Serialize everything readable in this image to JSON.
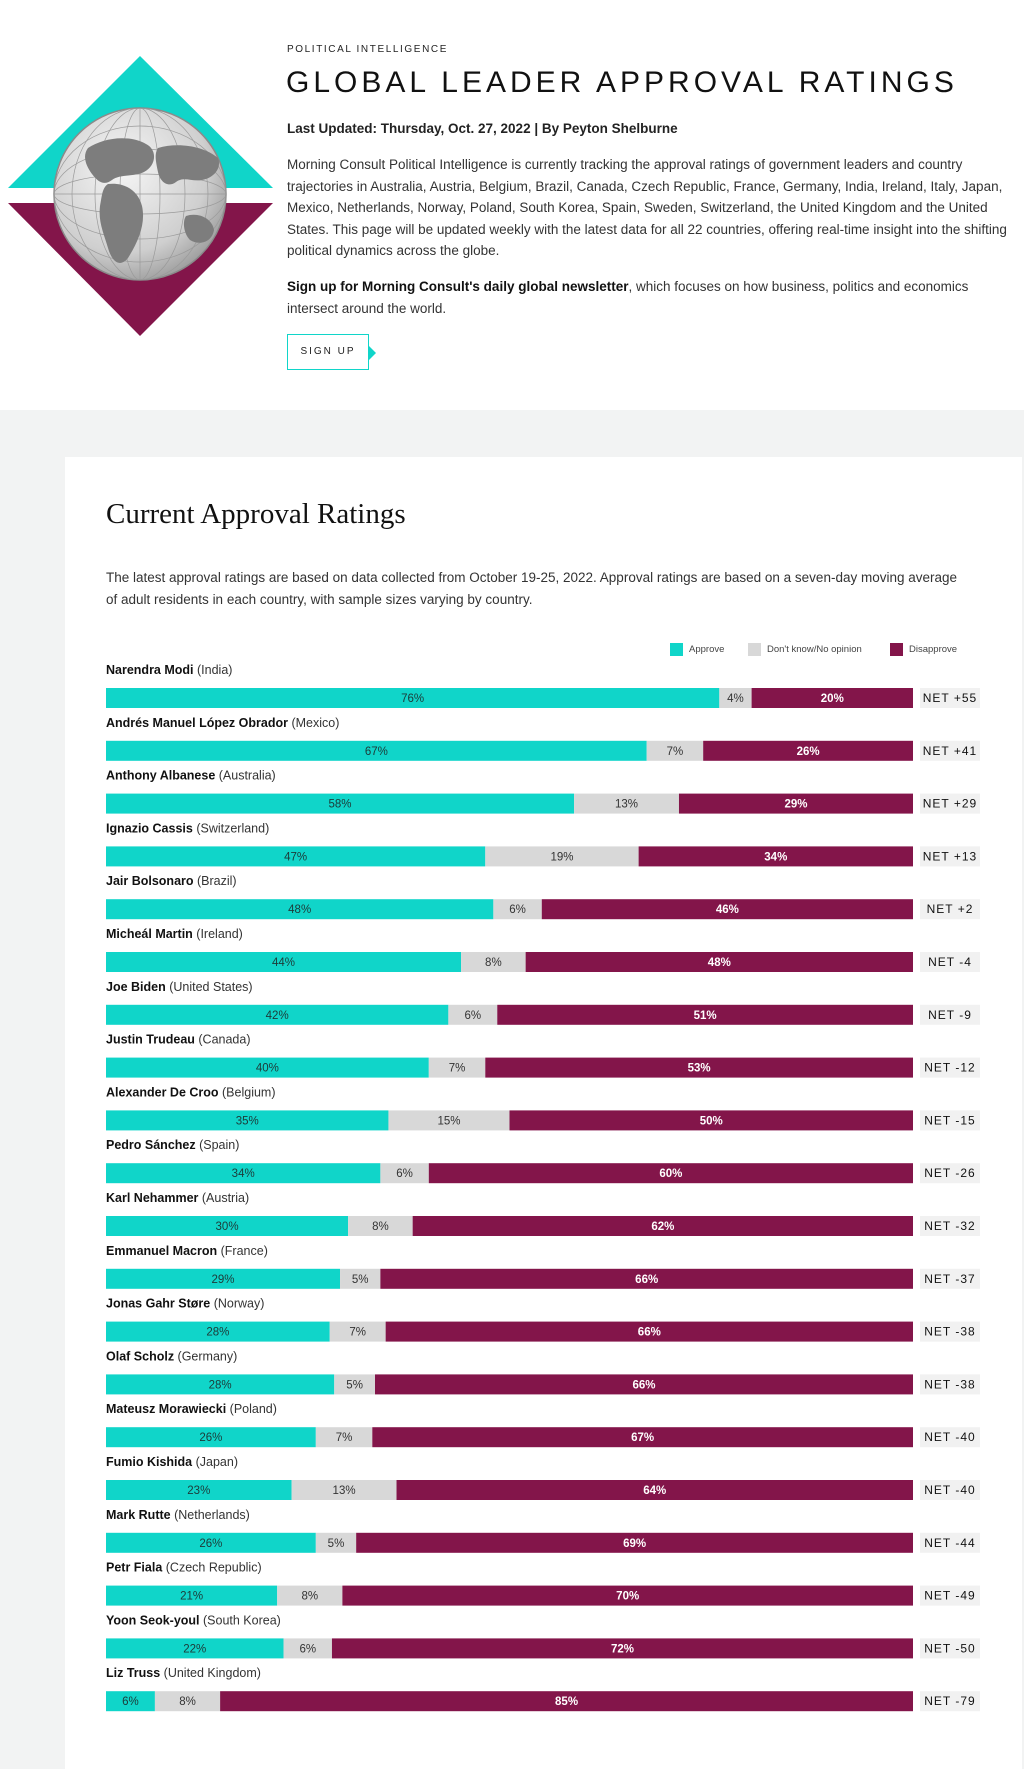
{
  "header": {
    "eyebrow": "POLITICAL INTELLIGENCE",
    "title": "GLOBAL LEADER APPROVAL RATINGS",
    "updated_label": "Last Updated: Thursday, Oct. 27, 2022",
    "byline": " | By Peyton Shelburne",
    "intro": "Morning Consult Political Intelligence is currently tracking the approval ratings of government leaders and country trajectories in Australia, Austria, Belgium, Brazil, Canada, Czech Republic, France, Germany, India, Ireland, Italy, Japan, Mexico, Netherlands, Norway, Poland, South Korea, Spain, Sweden, Switzerland, the United Kingdom and the United States. This page will be updated weekly with the latest data for all 22 countries, offering real-time insight into the shifting political dynamics across the globe.",
    "signup_link": "Sign up for Morning Consult's daily global newsletter",
    "signup_rest": ", which focuses on how business, politics and economics intersect around the world.",
    "signup_button": "SIGN UP"
  },
  "section": {
    "title": "Current Approval Ratings",
    "description": "The latest approval ratings are based on data collected from October 19-25, 2022. Approval ratings are based on a seven-day moving average of adult residents in each country, with sample sizes varying by country."
  },
  "colors": {
    "approve": "#10d5c9",
    "neutral": "#d8d8d8",
    "disapprove": "#83154a",
    "net_bg": "#f1f1f1"
  },
  "chart_data": {
    "type": "bar",
    "orientation": "horizontal",
    "stacked": true,
    "legend": [
      {
        "key": "approve",
        "label": "Approve"
      },
      {
        "key": "neutral",
        "label": "Don't know/No opinion"
      },
      {
        "key": "disapprove",
        "label": "Disapprove"
      }
    ],
    "legend_position": "top-right",
    "rows": [
      {
        "name": "Narendra Modi",
        "country": "(India)",
        "approve": 76,
        "neutral": 4,
        "disapprove": 20,
        "net": "NET +55"
      },
      {
        "name": "Andrés Manuel López Obrador",
        "country": "(Mexico)",
        "approve": 67,
        "neutral": 7,
        "disapprove": 26,
        "net": "NET +41"
      },
      {
        "name": "Anthony Albanese",
        "country": "(Australia)",
        "approve": 58,
        "neutral": 13,
        "disapprove": 29,
        "net": "NET +29"
      },
      {
        "name": "Ignazio Cassis",
        "country": "(Switzerland)",
        "approve": 47,
        "neutral": 19,
        "disapprove": 34,
        "net": "NET +13"
      },
      {
        "name": "Jair Bolsonaro",
        "country": "(Brazil)",
        "approve": 48,
        "neutral": 6,
        "disapprove": 46,
        "net": "NET +2"
      },
      {
        "name": "Micheál Martin",
        "country": "(Ireland)",
        "approve": 44,
        "neutral": 8,
        "disapprove": 48,
        "net": "NET -4"
      },
      {
        "name": "Joe Biden",
        "country": "(United States)",
        "approve": 42,
        "neutral": 6,
        "disapprove": 51,
        "net": "NET -9"
      },
      {
        "name": "Justin Trudeau",
        "country": "(Canada)",
        "approve": 40,
        "neutral": 7,
        "disapprove": 53,
        "net": "NET -12"
      },
      {
        "name": "Alexander De Croo",
        "country": "(Belgium)",
        "approve": 35,
        "neutral": 15,
        "disapprove": 50,
        "net": "NET -15"
      },
      {
        "name": "Pedro Sánchez",
        "country": "(Spain)",
        "approve": 34,
        "neutral": 6,
        "disapprove": 60,
        "net": "NET -26"
      },
      {
        "name": "Karl Nehammer",
        "country": "(Austria)",
        "approve": 30,
        "neutral": 8,
        "disapprove": 62,
        "net": "NET -32"
      },
      {
        "name": "Emmanuel Macron",
        "country": "(France)",
        "approve": 29,
        "neutral": 5,
        "disapprove": 66,
        "net": "NET -37"
      },
      {
        "name": "Jonas Gahr Støre",
        "country": "(Norway)",
        "approve": 28,
        "neutral": 7,
        "disapprove": 66,
        "net": "NET -38"
      },
      {
        "name": "Olaf Scholz",
        "country": "(Germany)",
        "approve": 28,
        "neutral": 5,
        "disapprove": 66,
        "net": "NET -38"
      },
      {
        "name": "Mateusz Morawiecki",
        "country": "(Poland)",
        "approve": 26,
        "neutral": 7,
        "disapprove": 67,
        "net": "NET -40"
      },
      {
        "name": "Fumio Kishida",
        "country": "(Japan)",
        "approve": 23,
        "neutral": 13,
        "disapprove": 64,
        "net": "NET -40"
      },
      {
        "name": "Mark Rutte",
        "country": "(Netherlands)",
        "approve": 26,
        "neutral": 5,
        "disapprove": 69,
        "net": "NET -44"
      },
      {
        "name": "Petr Fiala",
        "country": "(Czech Republic)",
        "approve": 21,
        "neutral": 8,
        "disapprove": 70,
        "net": "NET -49"
      },
      {
        "name": "Yoon Seok-youl",
        "country": "(South Korea)",
        "approve": 22,
        "neutral": 6,
        "disapprove": 72,
        "net": "NET -50"
      },
      {
        "name": "Liz Truss",
        "country": "(United Kingdom)",
        "approve": 6,
        "neutral": 8,
        "disapprove": 85,
        "net": "NET -79"
      }
    ]
  }
}
